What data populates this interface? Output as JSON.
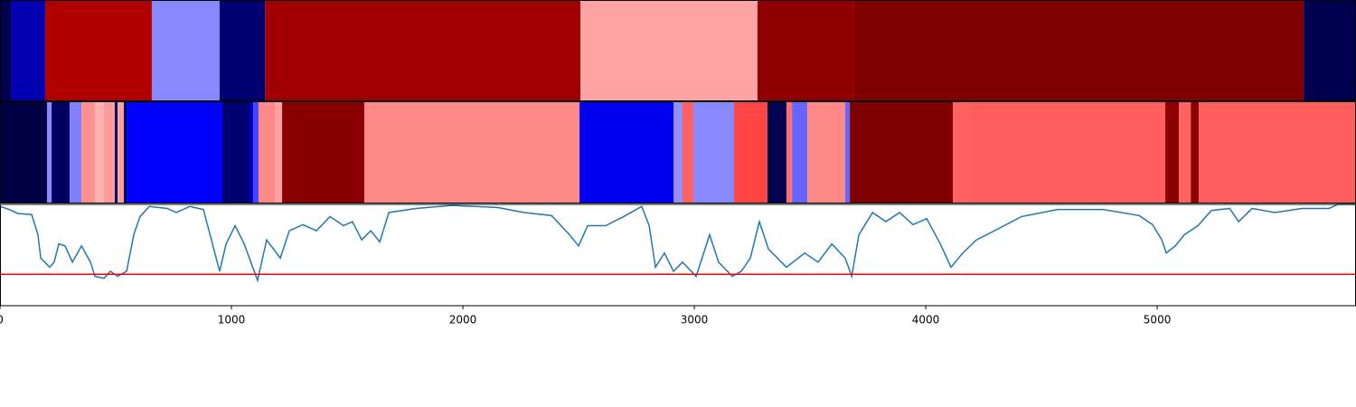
{
  "chart_data": [
    {
      "type": "strip",
      "xlim": [
        0,
        5859
      ],
      "edges": [
        0,
        47,
        195,
        656,
        949,
        1145,
        2508,
        3273,
        3691,
        5633,
        5859
      ],
      "colors": [
        "#000050",
        "#0000b0",
        "#b00000",
        "#8888ff",
        "#000070",
        "#a00000",
        "#ffa4a4",
        "#900000",
        "#800000",
        "#000050"
      ]
    },
    {
      "type": "strip",
      "xlim": [
        0,
        5859
      ],
      "edges": [
        0,
        203,
        223,
        301,
        352,
        410,
        449,
        496,
        508,
        535,
        547,
        961,
        1078,
        1094,
        1117,
        1188,
        1219,
        1574,
        2504,
        2910,
        2949,
        2996,
        3172,
        3316,
        3398,
        3422,
        3488,
        3652,
        3672,
        4117,
        4195,
        5035,
        5094,
        5145,
        5180,
        5859
      ],
      "colors": [
        "#000045",
        "#8888ff",
        "#000060",
        "#8080ff",
        "#ff9090",
        "#ffb0b0",
        "#ff9a9a",
        "#000060",
        "#ffa0a0",
        "#000060",
        "#0000ff",
        "#000070",
        "#0000cc",
        "#4444ff",
        "#ff8888",
        "#ffa0a0",
        "#8a0000",
        "#ff8888",
        "#0000f0",
        "#9090ff",
        "#ff6060",
        "#8888ff",
        "#ff4444",
        "#000050",
        "#ff7070",
        "#6666ff",
        "#ff8888",
        "#6666ff",
        "#800000",
        "#ff6060",
        "#ff5e5e",
        "#8b0000",
        "#ff6060",
        "#8b0000",
        "#ff5e5e"
      ]
    },
    {
      "type": "line",
      "xlim": [
        0,
        5859
      ],
      "ylim": [
        0,
        1
      ],
      "xticks": [
        0,
        1000,
        2000,
        3000,
        4000,
        5000
      ],
      "color": "#1f77b4",
      "hline": 0.31,
      "hline_color": "#ff0000",
      "x": [
        0,
        39,
        78,
        137,
        164,
        176,
        215,
        234,
        254,
        281,
        313,
        352,
        391,
        410,
        449,
        477,
        508,
        547,
        578,
        605,
        645,
        723,
        762,
        820,
        879,
        918,
        949,
        977,
        1016,
        1055,
        1113,
        1152,
        1211,
        1250,
        1309,
        1367,
        1426,
        1484,
        1523,
        1563,
        1602,
        1641,
        1680,
        1797,
        1953,
        2148,
        2266,
        2383,
        2461,
        2500,
        2539,
        2617,
        2695,
        2773,
        2805,
        2832,
        2871,
        2910,
        2949,
        3008,
        3066,
        3105,
        3164,
        3203,
        3242,
        3281,
        3320,
        3398,
        3477,
        3535,
        3594,
        3652,
        3680,
        3711,
        3770,
        3828,
        3887,
        3945,
        4004,
        4063,
        4109,
        4160,
        4219,
        4297,
        4414,
        4570,
        4766,
        4922,
        4980,
        5020,
        5039,
        5078,
        5117,
        5176,
        5234,
        5313,
        5352,
        5410,
        5508,
        5625,
        5742,
        5781,
        5859
      ],
      "values": [
        0.98,
        0.95,
        0.91,
        0.9,
        0.7,
        0.47,
        0.38,
        0.43,
        0.61,
        0.59,
        0.43,
        0.59,
        0.43,
        0.29,
        0.27,
        0.34,
        0.29,
        0.34,
        0.7,
        0.88,
        0.98,
        0.96,
        0.92,
        0.98,
        0.95,
        0.61,
        0.34,
        0.61,
        0.79,
        0.61,
        0.25,
        0.65,
        0.47,
        0.74,
        0.8,
        0.74,
        0.88,
        0.79,
        0.83,
        0.65,
        0.74,
        0.63,
        0.92,
        0.96,
        0.99,
        0.97,
        0.92,
        0.89,
        0.7,
        0.59,
        0.79,
        0.79,
        0.88,
        0.98,
        0.79,
        0.38,
        0.52,
        0.34,
        0.43,
        0.29,
        0.7,
        0.43,
        0.29,
        0.34,
        0.47,
        0.83,
        0.56,
        0.38,
        0.52,
        0.43,
        0.61,
        0.47,
        0.29,
        0.7,
        0.92,
        0.83,
        0.92,
        0.8,
        0.86,
        0.61,
        0.38,
        0.52,
        0.65,
        0.74,
        0.88,
        0.95,
        0.95,
        0.89,
        0.8,
        0.65,
        0.52,
        0.59,
        0.7,
        0.79,
        0.94,
        0.96,
        0.83,
        0.96,
        0.92,
        0.96,
        0.96,
        1.0,
        1.0
      ]
    }
  ]
}
